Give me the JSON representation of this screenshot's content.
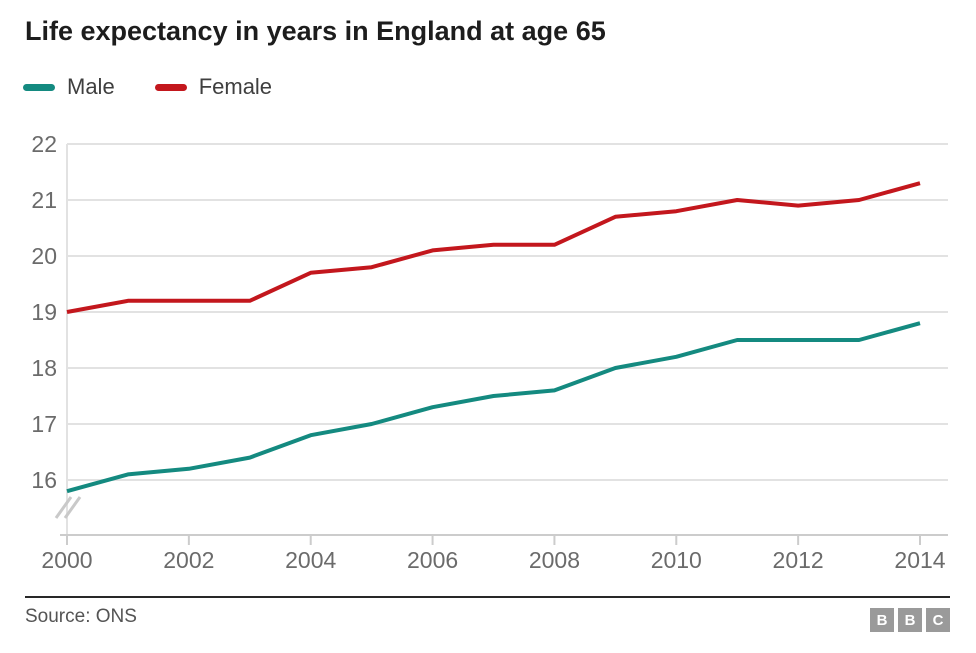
{
  "header": {
    "title": "Life expectancy in years in England at age 65"
  },
  "footer": {
    "source": "Source: ONS",
    "logo_letters": [
      "B",
      "B",
      "C"
    ]
  },
  "colors": {
    "male_line": "#148a80",
    "female_line": "#c3171d",
    "gridline": "#e2e2e2",
    "axis_line": "#cccccc",
    "tick_label": "#6b6b6b",
    "title_text": "#1d1d1d",
    "legend_text": "#3f3f3f",
    "source_text": "#545454",
    "footer_rule": "#282828",
    "logo_block": "#9a9a9a"
  },
  "chart_data": {
    "type": "line",
    "title": "Life expectancy in years in England at age 65",
    "xlabel": "",
    "ylabel": "",
    "x": [
      2000,
      2001,
      2002,
      2003,
      2004,
      2005,
      2006,
      2007,
      2008,
      2009,
      2010,
      2011,
      2012,
      2013,
      2014
    ],
    "series": [
      {
        "name": "Male",
        "color": "#148a80",
        "values": [
          15.8,
          16.1,
          16.2,
          16.4,
          16.8,
          17.0,
          17.3,
          17.5,
          17.6,
          18.0,
          18.2,
          18.5,
          18.5,
          18.5,
          18.8
        ]
      },
      {
        "name": "Female",
        "color": "#c3171d",
        "values": [
          19.0,
          19.2,
          19.2,
          19.2,
          19.7,
          19.8,
          20.1,
          20.2,
          20.2,
          20.7,
          20.8,
          21.0,
          20.9,
          21.0,
          21.3
        ]
      }
    ],
    "xticks": [
      2000,
      2002,
      2004,
      2006,
      2008,
      2010,
      2012,
      2014
    ],
    "yticks": [
      16,
      17,
      18,
      19,
      20,
      21,
      22
    ],
    "ylim": [
      15,
      22
    ],
    "grid": true,
    "axis_break": true,
    "legend_position": "top-left",
    "source": "Source: ONS"
  }
}
